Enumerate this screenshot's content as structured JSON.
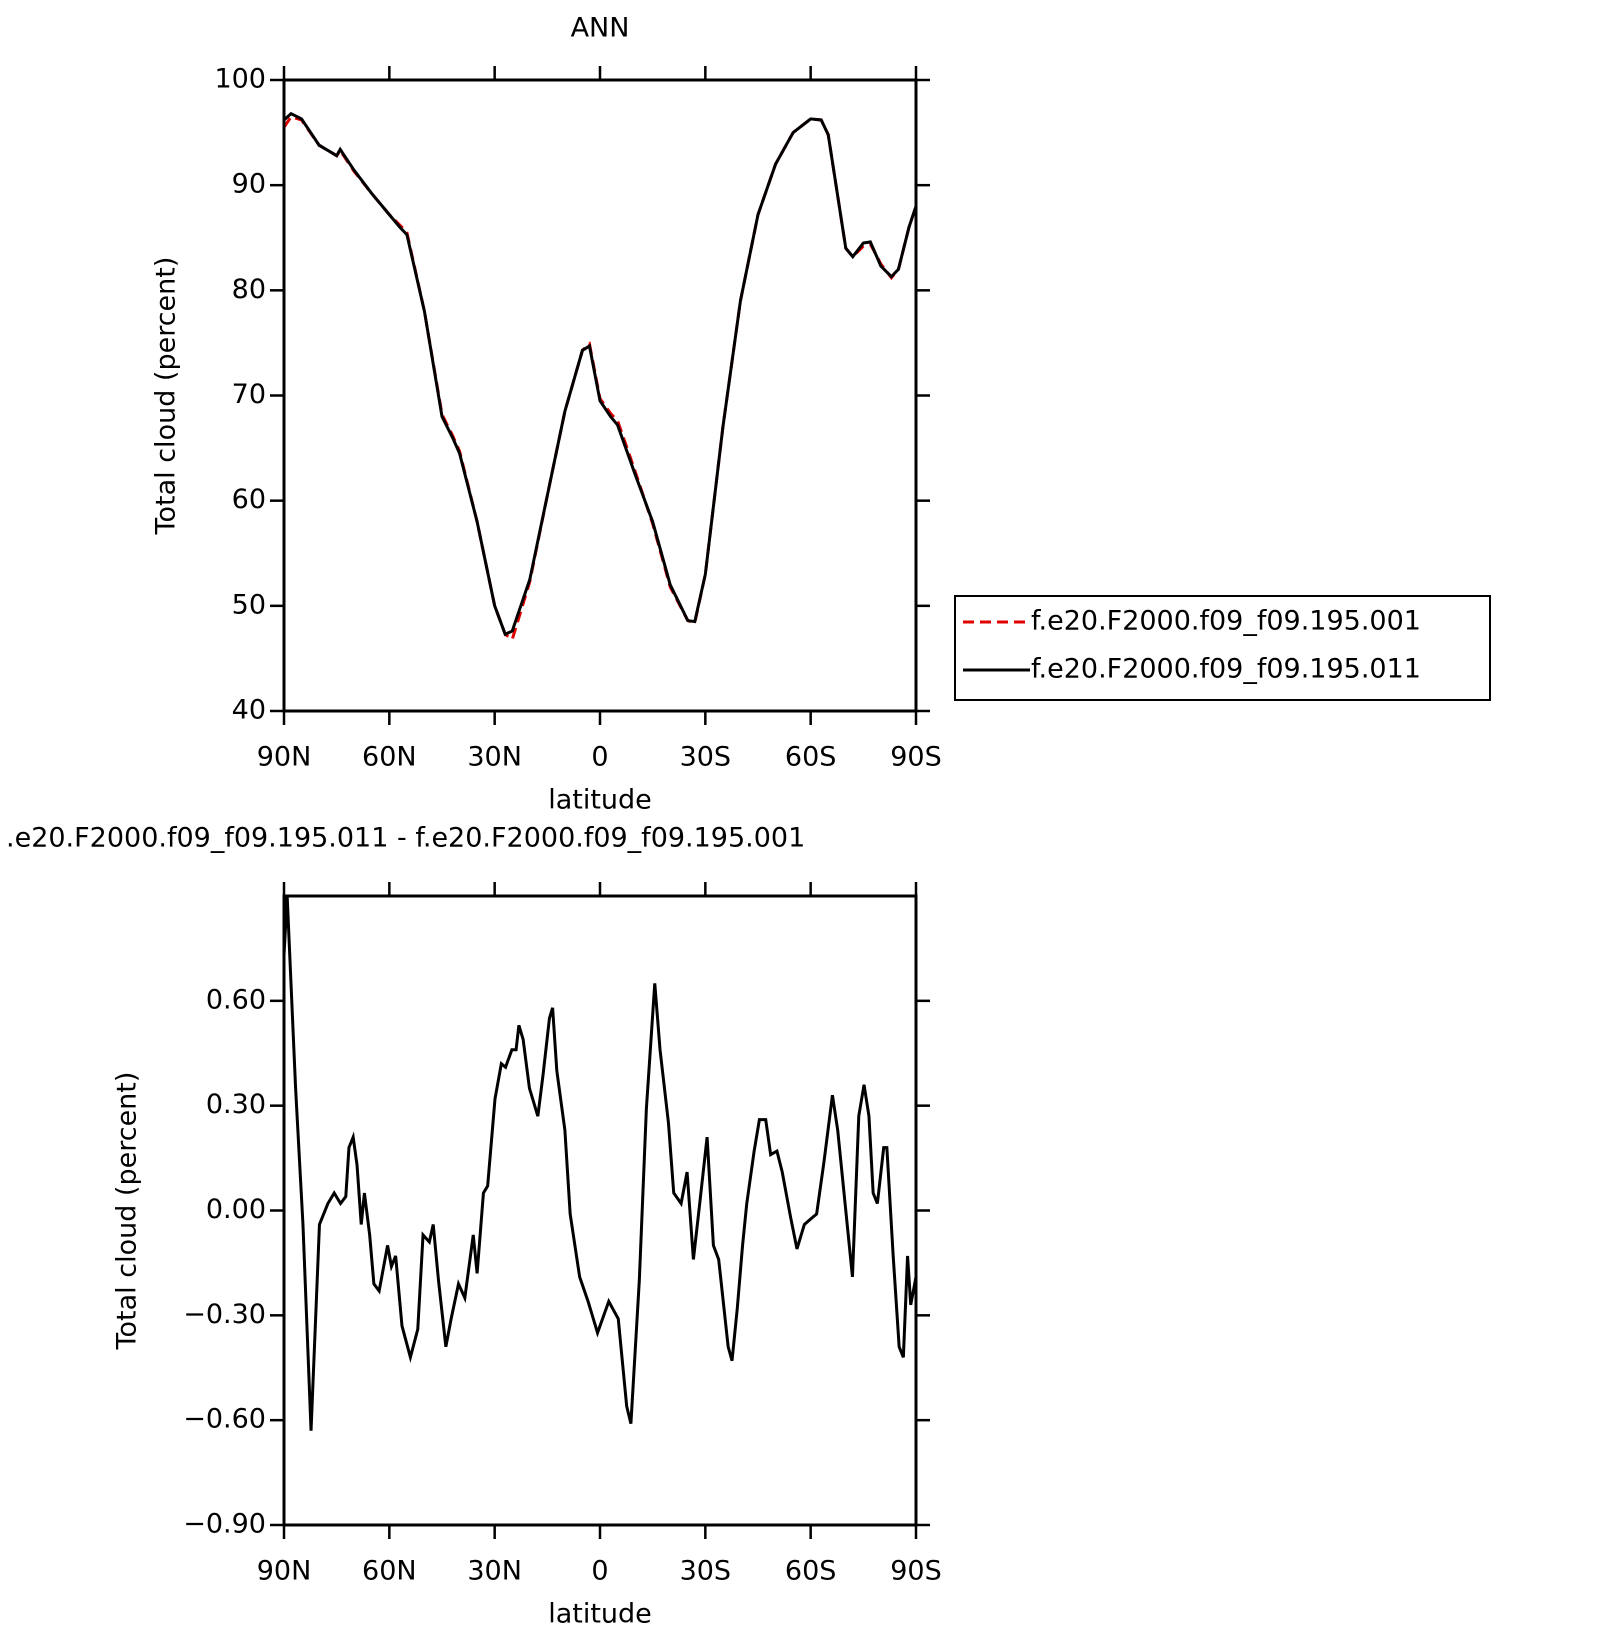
{
  "chart_data": [
    {
      "type": "line",
      "title": "ANN",
      "xlabel": "latitude",
      "ylabel": "Total cloud (percent)",
      "x": [
        90,
        88,
        85,
        80,
        75,
        74,
        70,
        65,
        60,
        57,
        55,
        50,
        45,
        42,
        40,
        35,
        30,
        27,
        25,
        20,
        15,
        10,
        5,
        3,
        0,
        -3,
        -5,
        -10,
        -15,
        -20,
        -25,
        -27,
        -30,
        -35,
        -40,
        -45,
        -50,
        -55,
        -60,
        -63,
        -65,
        -70,
        -72,
        -75,
        -77,
        -80,
        -83,
        -85,
        -88,
        -90
      ],
      "series": [
        {
          "name": "f.e20.F2000.f09_f09.195.001",
          "color": "#e00000",
          "style": "dashed",
          "values": [
            95.5,
            96.5,
            96.2,
            93.8,
            92.8,
            93.3,
            91.3,
            89.2,
            87.2,
            86.2,
            85.5,
            78,
            68.2,
            66.2,
            64.7,
            58,
            50,
            47.3,
            46.8,
            52.3,
            60.5,
            68.5,
            74.3,
            74.9,
            69.7,
            68.3,
            67.6,
            62.8,
            57.8,
            51.8,
            48.6,
            48.4,
            53,
            67,
            79,
            87.2,
            92,
            95,
            96.3,
            96.2,
            94.8,
            84,
            83.2,
            84.2,
            84.4,
            82.5,
            81.2,
            82,
            86,
            88
          ]
        },
        {
          "name": "f.e20.F2000.f09_f09.195.011",
          "color": "#000000",
          "style": "solid",
          "values": [
            96.2,
            96.8,
            96.3,
            93.8,
            92.8,
            93.4,
            91.4,
            89.2,
            87.2,
            86,
            85.3,
            78,
            68,
            66,
            64.5,
            58,
            50,
            47.3,
            47.6,
            52.5,
            60.5,
            68.5,
            74.3,
            74.7,
            69.5,
            68,
            67.2,
            62.5,
            58,
            52,
            48.6,
            48.5,
            53,
            67,
            79,
            87.2,
            92,
            95,
            96.3,
            96.2,
            94.8,
            84,
            83.2,
            84.5,
            84.6,
            82.3,
            81.3,
            82,
            86,
            88
          ]
        }
      ],
      "xlim": [
        90,
        -90
      ],
      "xticks": [
        {
          "value": 90,
          "label": "90N"
        },
        {
          "value": 60,
          "label": "60N"
        },
        {
          "value": 30,
          "label": "30N"
        },
        0,
        {
          "value": -30,
          "label": "30S"
        },
        {
          "value": -60,
          "label": "60S"
        },
        {
          "value": -90,
          "label": "90S"
        }
      ],
      "ylim": [
        40,
        100
      ],
      "yticks": [
        40,
        50,
        60,
        70,
        80,
        90,
        100
      ],
      "grid": false,
      "legend": "outside-right"
    },
    {
      "type": "line",
      "title": ".e20.F2000.f09_f09.195.011 - f.e20.F2000.f09_f09.195.001",
      "xlabel": "latitude",
      "ylabel": "Total cloud (percent)",
      "x": [
        90,
        89.1,
        86.7,
        84.6,
        82.3,
        79.9,
        77.5,
        75.7,
        73.9,
        72.4,
        71.5,
        70.3,
        69.2,
        68.0,
        67.1,
        65.6,
        64.4,
        62.9,
        60.5,
        59.4,
        58.2,
        56.4,
        54.0,
        51.9,
        50.4,
        48.6,
        47.5,
        46.0,
        43.9,
        42.4,
        40.3,
        38.5,
        36.1,
        35.0,
        33.2,
        32.0,
        29.9,
        28.1,
        26.9,
        25.1,
        23.9,
        23.1,
        21.9,
        20.1,
        17.7,
        16.2,
        14.4,
        13.5,
        12.3,
        10.0,
        8.5,
        5.8,
        3.4,
        0.7,
        -2.5,
        -5.2,
        -7.6,
        -8.8,
        -11.2,
        -13.2,
        -15.6,
        -17.1,
        -19.5,
        -21.0,
        -23.1,
        -24.8,
        -26.6,
        -28.4,
        -30.5,
        -32.3,
        -33.8,
        -36.5,
        -37.6,
        -39.1,
        -40.6,
        -41.8,
        -43.9,
        -45.4,
        -47.2,
        -48.6,
        -50.4,
        -51.9,
        -54.3,
        -56.1,
        -58.2,
        -60.5,
        -61.7,
        -63.8,
        -66.2,
        -67.7,
        -69.8,
        -71.9,
        -73.7,
        -75.2,
        -76.6,
        -77.8,
        -79.0,
        -80.8,
        -81.7,
        -83.5,
        -85.2,
        -86.4,
        -87.6,
        -88.5,
        -90
      ],
      "series": [
        {
          "color": "#000000",
          "style": "solid",
          "values": [
            0.73,
            0.9,
            0.35,
            -0.04,
            -0.63,
            -0.04,
            0.02,
            0.05,
            0.02,
            0.04,
            0.18,
            0.21,
            0.13,
            -0.04,
            0.05,
            -0.07,
            -0.21,
            -0.23,
            -0.1,
            -0.16,
            -0.13,
            -0.33,
            -0.42,
            -0.34,
            -0.07,
            -0.09,
            -0.04,
            -0.2,
            -0.39,
            -0.31,
            -0.21,
            -0.25,
            -0.07,
            -0.18,
            0.05,
            0.07,
            0.32,
            0.42,
            0.41,
            0.46,
            0.46,
            0.53,
            0.49,
            0.35,
            0.27,
            0.39,
            0.55,
            0.58,
            0.4,
            0.23,
            -0.01,
            -0.19,
            -0.26,
            -0.35,
            -0.26,
            -0.31,
            -0.56,
            -0.61,
            -0.2,
            0.29,
            0.65,
            0.46,
            0.25,
            0.05,
            0.02,
            0.11,
            -0.14,
            0.02,
            0.21,
            -0.1,
            -0.14,
            -0.39,
            -0.43,
            -0.28,
            -0.1,
            0.02,
            0.17,
            0.26,
            0.26,
            0.16,
            0.17,
            0.11,
            -0.02,
            -0.11,
            -0.04,
            -0.02,
            -0.01,
            0.14,
            0.33,
            0.23,
            0.02,
            -0.19,
            0.27,
            0.36,
            0.27,
            0.05,
            0.02,
            0.18,
            0.18,
            -0.13,
            -0.39,
            -0.42,
            -0.13,
            -0.27,
            -0.19
          ]
        }
      ],
      "xlim": [
        90,
        -90
      ],
      "xticks": [
        {
          "value": 90,
          "label": "90N"
        },
        {
          "value": 60,
          "label": "60N"
        },
        {
          "value": 30,
          "label": "30N"
        },
        0,
        {
          "value": -30,
          "label": "30S"
        },
        {
          "value": -60,
          "label": "60S"
        },
        {
          "value": -90,
          "label": "90S"
        }
      ],
      "ylim": [
        -0.9,
        0.9
      ],
      "yticks": [
        {
          "value": -0.9,
          "label": "−0.90"
        },
        {
          "value": -0.6,
          "label": "−0.60"
        },
        {
          "value": -0.3,
          "label": "−0.30"
        },
        {
          "value": 0,
          "label": "0.00"
        },
        {
          "value": 0.3,
          "label": "0.30"
        },
        {
          "value": 0.6,
          "label": "0.60"
        }
      ],
      "grid": false
    }
  ]
}
